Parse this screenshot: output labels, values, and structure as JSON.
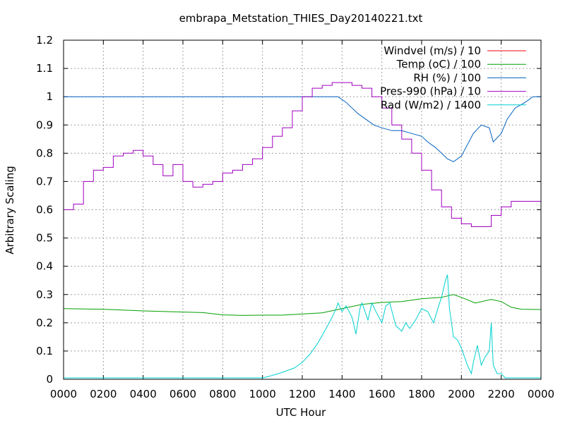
{
  "chart_data": {
    "type": "line",
    "title": "embrapa_Metstation_THIES_Day20140221.txt",
    "xlabel": "UTC Hour",
    "ylabel": "Arbitrary Scaling",
    "xlim": [
      0,
      24
    ],
    "ylim": [
      0,
      1.2
    ],
    "x_ticks": [
      "0000",
      "0200",
      "0400",
      "0600",
      "0800",
      "1000",
      "1200",
      "1400",
      "1600",
      "1800",
      "2000",
      "2200",
      "0000"
    ],
    "y_ticks": [
      "0",
      "0.1",
      "0.2",
      "0.3",
      "0.4",
      "0.5",
      "0.6",
      "0.7",
      "0.8",
      "0.9",
      "1",
      "1.1",
      "1.2"
    ],
    "grid": true,
    "legend_position": "top-right",
    "series": [
      {
        "name": "Windvel (m/s) / 10",
        "color": "#ff0000",
        "points": []
      },
      {
        "name": "Temp (oC) / 100",
        "color": "#00a000",
        "points": [
          [
            0,
            0.25
          ],
          [
            2,
            0.248
          ],
          [
            4,
            0.242
          ],
          [
            6,
            0.238
          ],
          [
            7,
            0.236
          ],
          [
            8,
            0.228
          ],
          [
            9,
            0.226
          ],
          [
            10,
            0.227
          ],
          [
            11,
            0.227
          ],
          [
            12,
            0.231
          ],
          [
            13,
            0.235
          ],
          [
            14,
            0.25
          ],
          [
            15,
            0.265
          ],
          [
            16,
            0.272
          ],
          [
            17,
            0.275
          ],
          [
            18,
            0.285
          ],
          [
            19,
            0.29
          ],
          [
            19.6,
            0.3
          ],
          [
            20,
            0.29
          ],
          [
            20.7,
            0.27
          ],
          [
            21.5,
            0.283
          ],
          [
            22,
            0.275
          ],
          [
            22.5,
            0.255
          ],
          [
            23,
            0.248
          ],
          [
            24,
            0.247
          ]
        ]
      },
      {
        "name": "RH (%) / 100",
        "color": "#0060c0",
        "points": [
          [
            0,
            1
          ],
          [
            13.3,
            1
          ],
          [
            13.8,
            1
          ],
          [
            14.2,
            0.98
          ],
          [
            14.5,
            0.96
          ],
          [
            14.8,
            0.94
          ],
          [
            15.2,
            0.92
          ],
          [
            15.6,
            0.9
          ],
          [
            16,
            0.89
          ],
          [
            16.5,
            0.88
          ],
          [
            17,
            0.88
          ],
          [
            17.5,
            0.87
          ],
          [
            18,
            0.86
          ],
          [
            18.3,
            0.84
          ],
          [
            18.7,
            0.82
          ],
          [
            19,
            0.8
          ],
          [
            19.3,
            0.78
          ],
          [
            19.6,
            0.77
          ],
          [
            20,
            0.79
          ],
          [
            20.3,
            0.83
          ],
          [
            20.6,
            0.87
          ],
          [
            21,
            0.9
          ],
          [
            21.4,
            0.89
          ],
          [
            21.6,
            0.84
          ],
          [
            22,
            0.87
          ],
          [
            22.3,
            0.92
          ],
          [
            22.7,
            0.96
          ],
          [
            23.2,
            0.98
          ],
          [
            23.6,
            1
          ],
          [
            24,
            1
          ]
        ]
      },
      {
        "name": "Pres-990 (hPa) / 10",
        "color": "#a000c0",
        "points": [
          [
            0,
            0.6
          ],
          [
            0.5,
            0.62
          ],
          [
            1,
            0.7
          ],
          [
            1.5,
            0.74
          ],
          [
            2,
            0.75
          ],
          [
            2.5,
            0.79
          ],
          [
            3,
            0.8
          ],
          [
            3.5,
            0.81
          ],
          [
            4,
            0.79
          ],
          [
            4.5,
            0.76
          ],
          [
            5,
            0.72
          ],
          [
            5.5,
            0.76
          ],
          [
            6,
            0.7
          ],
          [
            6.5,
            0.68
          ],
          [
            7,
            0.69
          ],
          [
            7.5,
            0.7
          ],
          [
            8,
            0.73
          ],
          [
            8.5,
            0.74
          ],
          [
            9,
            0.76
          ],
          [
            9.5,
            0.78
          ],
          [
            10,
            0.82
          ],
          [
            10.5,
            0.86
          ],
          [
            11,
            0.89
          ],
          [
            11.5,
            0.95
          ],
          [
            12,
            1.0
          ],
          [
            12.5,
            1.03
          ],
          [
            13,
            1.04
          ],
          [
            13.5,
            1.05
          ],
          [
            14,
            1.05
          ],
          [
            14.5,
            1.04
          ],
          [
            15,
            1.03
          ],
          [
            15.5,
            1.0
          ],
          [
            16,
            0.96
          ],
          [
            16.5,
            0.9
          ],
          [
            17,
            0.85
          ],
          [
            17.5,
            0.8
          ],
          [
            18,
            0.74
          ],
          [
            18.5,
            0.67
          ],
          [
            19,
            0.61
          ],
          [
            19.5,
            0.57
          ],
          [
            20,
            0.55
          ],
          [
            20.5,
            0.54
          ],
          [
            21,
            0.54
          ],
          [
            21.5,
            0.58
          ],
          [
            22,
            0.61
          ],
          [
            22.5,
            0.63
          ],
          [
            23,
            0.63
          ],
          [
            23.5,
            0.63
          ],
          [
            24,
            0.65
          ]
        ]
      },
      {
        "name": "Rad (W/m2) / 1400",
        "color": "#00d0d0",
        "points": [
          [
            0,
            0.005
          ],
          [
            10,
            0.005
          ],
          [
            10.3,
            0.01
          ],
          [
            10.8,
            0.02
          ],
          [
            11.2,
            0.03
          ],
          [
            11.6,
            0.04
          ],
          [
            12,
            0.06
          ],
          [
            12.4,
            0.09
          ],
          [
            12.8,
            0.13
          ],
          [
            13.2,
            0.18
          ],
          [
            13.5,
            0.22
          ],
          [
            13.7,
            0.25
          ],
          [
            13.8,
            0.27
          ],
          [
            14,
            0.24
          ],
          [
            14.2,
            0.26
          ],
          [
            14.5,
            0.22
          ],
          [
            14.7,
            0.16
          ],
          [
            14.9,
            0.25
          ],
          [
            15,
            0.27
          ],
          [
            15.3,
            0.21
          ],
          [
            15.5,
            0.27
          ],
          [
            15.7,
            0.24
          ],
          [
            16,
            0.2
          ],
          [
            16.2,
            0.26
          ],
          [
            16.4,
            0.27
          ],
          [
            16.7,
            0.19
          ],
          [
            17,
            0.17
          ],
          [
            17.2,
            0.2
          ],
          [
            17.4,
            0.18
          ],
          [
            17.7,
            0.21
          ],
          [
            18,
            0.25
          ],
          [
            18.3,
            0.24
          ],
          [
            18.6,
            0.2
          ],
          [
            18.9,
            0.27
          ],
          [
            19,
            0.29
          ],
          [
            19.2,
            0.35
          ],
          [
            19.3,
            0.37
          ],
          [
            19.4,
            0.25
          ],
          [
            19.6,
            0.15
          ],
          [
            19.8,
            0.14
          ],
          [
            20,
            0.11
          ],
          [
            20.3,
            0.05
          ],
          [
            20.5,
            0.02
          ],
          [
            20.6,
            0.06
          ],
          [
            20.8,
            0.12
          ],
          [
            21,
            0.05
          ],
          [
            21.2,
            0.08
          ],
          [
            21.4,
            0.1
          ],
          [
            21.5,
            0.2
          ],
          [
            21.6,
            0.05
          ],
          [
            21.8,
            0.02
          ],
          [
            22,
            0.02
          ],
          [
            22.2,
            0.005
          ],
          [
            24,
            0.005
          ]
        ]
      }
    ]
  }
}
